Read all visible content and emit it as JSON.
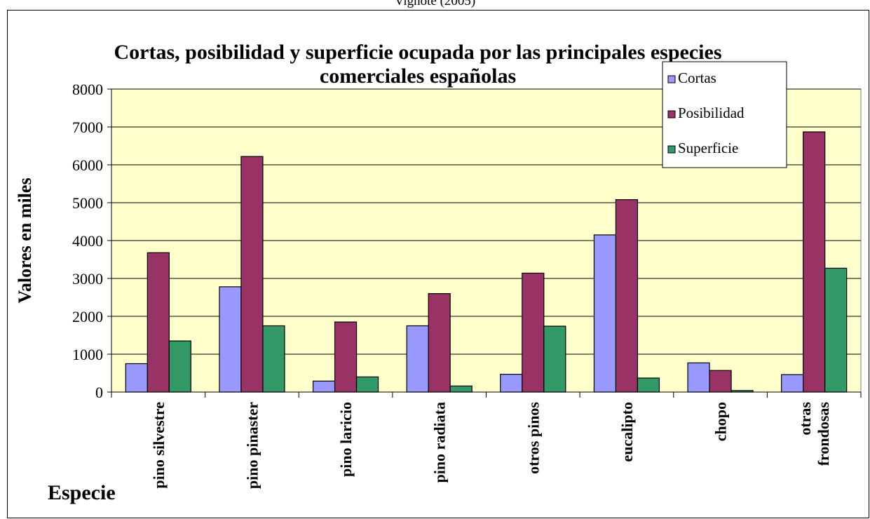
{
  "source_note": "Vignote (2005)",
  "chart_data": {
    "type": "bar",
    "title": "Cortas, posibilidad y superficie ocupada por las principales especies comerciales españolas",
    "title_lines": [
      "Cortas, posibilidad y superficie ocupada por las principales especies",
      "comerciales españolas"
    ],
    "xlabel": "Especie",
    "ylabel": "Valores en miles",
    "ylim": [
      0,
      8000
    ],
    "y_ticks": [
      0,
      1000,
      2000,
      3000,
      4000,
      5000,
      6000,
      7000,
      8000
    ],
    "grid": true,
    "legend_position": "top-right",
    "categories": [
      "pino silvestre",
      "pino pinaster",
      "pino laricio",
      "pino radiata",
      "otros pinos",
      "eucalipto",
      "chopo",
      "otras frondosas"
    ],
    "category_lines": [
      [
        "pino silvestre"
      ],
      [
        "pino pinaster"
      ],
      [
        "pino laricio"
      ],
      [
        "pino radiata"
      ],
      [
        "otros pinos"
      ],
      [
        "eucalipto"
      ],
      [
        "chopo"
      ],
      [
        "otras",
        "frondosas"
      ]
    ],
    "series": [
      {
        "name": "Cortas",
        "color": "#9999ff",
        "values": [
          750,
          2780,
          290,
          1750,
          470,
          4150,
          770,
          460
        ]
      },
      {
        "name": "Posibilidad",
        "color": "#993366",
        "values": [
          3680,
          6220,
          1850,
          2600,
          3140,
          5080,
          570,
          6870
        ]
      },
      {
        "name": "Superficie",
        "color": "#339966",
        "values": [
          1350,
          1750,
          400,
          160,
          1740,
          370,
          40,
          3270
        ]
      }
    ],
    "plot_background": "#ffffcc"
  }
}
